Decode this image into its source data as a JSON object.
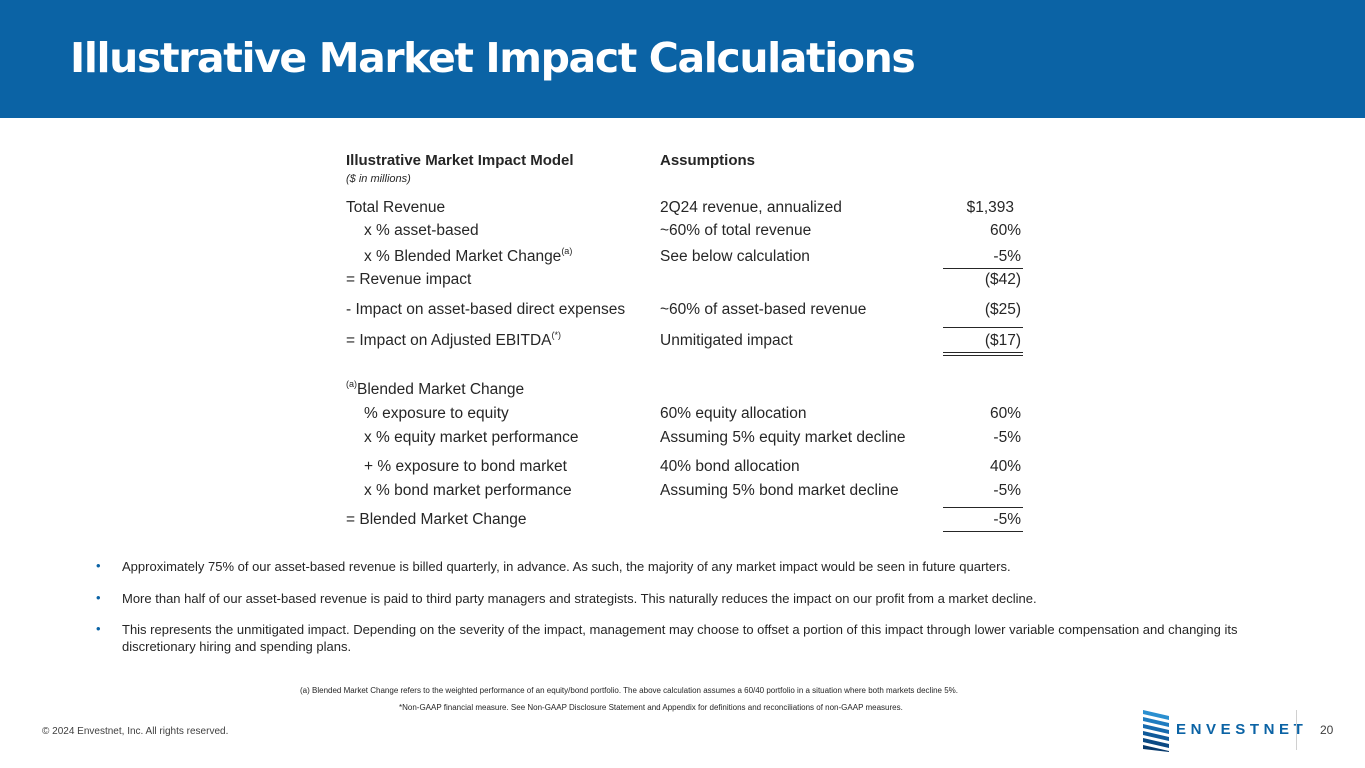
{
  "header": {
    "title": "Illustrative Market Impact Calculations"
  },
  "model": {
    "col1_heading": "Illustrative Market Impact Model",
    "col1_subheading": "($ in millions)",
    "col2_heading": "Assumptions",
    "rows": [
      {
        "label": "Total Revenue",
        "assumption": "2Q24 revenue, annualized",
        "value": "$1,393"
      },
      {
        "label": "x % asset-based",
        "assumption": "~60% of total revenue",
        "value": "60%"
      },
      {
        "label": "x % Blended Market Change",
        "sup": "(a)",
        "assumption": "See below calculation",
        "value": "-5%"
      },
      {
        "label": "= Revenue impact",
        "assumption": "",
        "value": "($42)"
      },
      {
        "label": "- Impact on asset-based direct expenses",
        "assumption": "~60% of asset-based revenue",
        "value": "($25)"
      },
      {
        "label": "= Impact on Adjusted EBITDA",
        "sup": "(*)",
        "assumption": "Unmitigated impact",
        "value": "($17)"
      }
    ]
  },
  "blended": {
    "heading_sup": "(a)",
    "heading": "Blended Market Change",
    "rows": [
      {
        "label": "% exposure to equity",
        "assumption": "60% equity allocation",
        "value": "60%"
      },
      {
        "label": "x % equity market performance",
        "assumption": "Assuming 5% equity market decline",
        "value": "-5%"
      },
      {
        "label": "+ % exposure to bond market",
        "assumption": "40% bond allocation",
        "value": "40%"
      },
      {
        "label": "x % bond market performance",
        "assumption": "Assuming 5% bond market decline",
        "value": "-5%"
      },
      {
        "label": "= Blended Market Change",
        "assumption": "",
        "value": "-5%"
      }
    ]
  },
  "bullets": [
    "Approximately 75% of our asset-based revenue is billed quarterly, in advance. As such, the majority of any market impact would be seen in future quarters.",
    "More than half of our asset-based revenue is paid to third party managers and strategists. This naturally reduces the impact on our profit from a market decline.",
    "This represents the unmitigated impact. Depending on the severity of the impact, management may choose to offset a portion of this impact through lower variable compensation and changing its discretionary hiring and spending plans."
  ],
  "bullet_marker": "•",
  "footnotes": {
    "a": "(a) Blended Market Change refers to the weighted performance of an equity/bond portfolio.  The above calculation assumes a 60/40 portfolio in a situation where both markets decline 5%.",
    "star": "*Non-GAAP financial measure. See Non-GAAP Disclosure Statement and Appendix for definitions and reconciliations of non-GAAP measures."
  },
  "footer": {
    "copyright": "© 2024 Envestnet, Inc. All rights reserved.",
    "logo_text": "ENVESTNET",
    "page_number": "20"
  },
  "colors": {
    "brand_blue": "#0b63a5",
    "text": "#262626"
  }
}
